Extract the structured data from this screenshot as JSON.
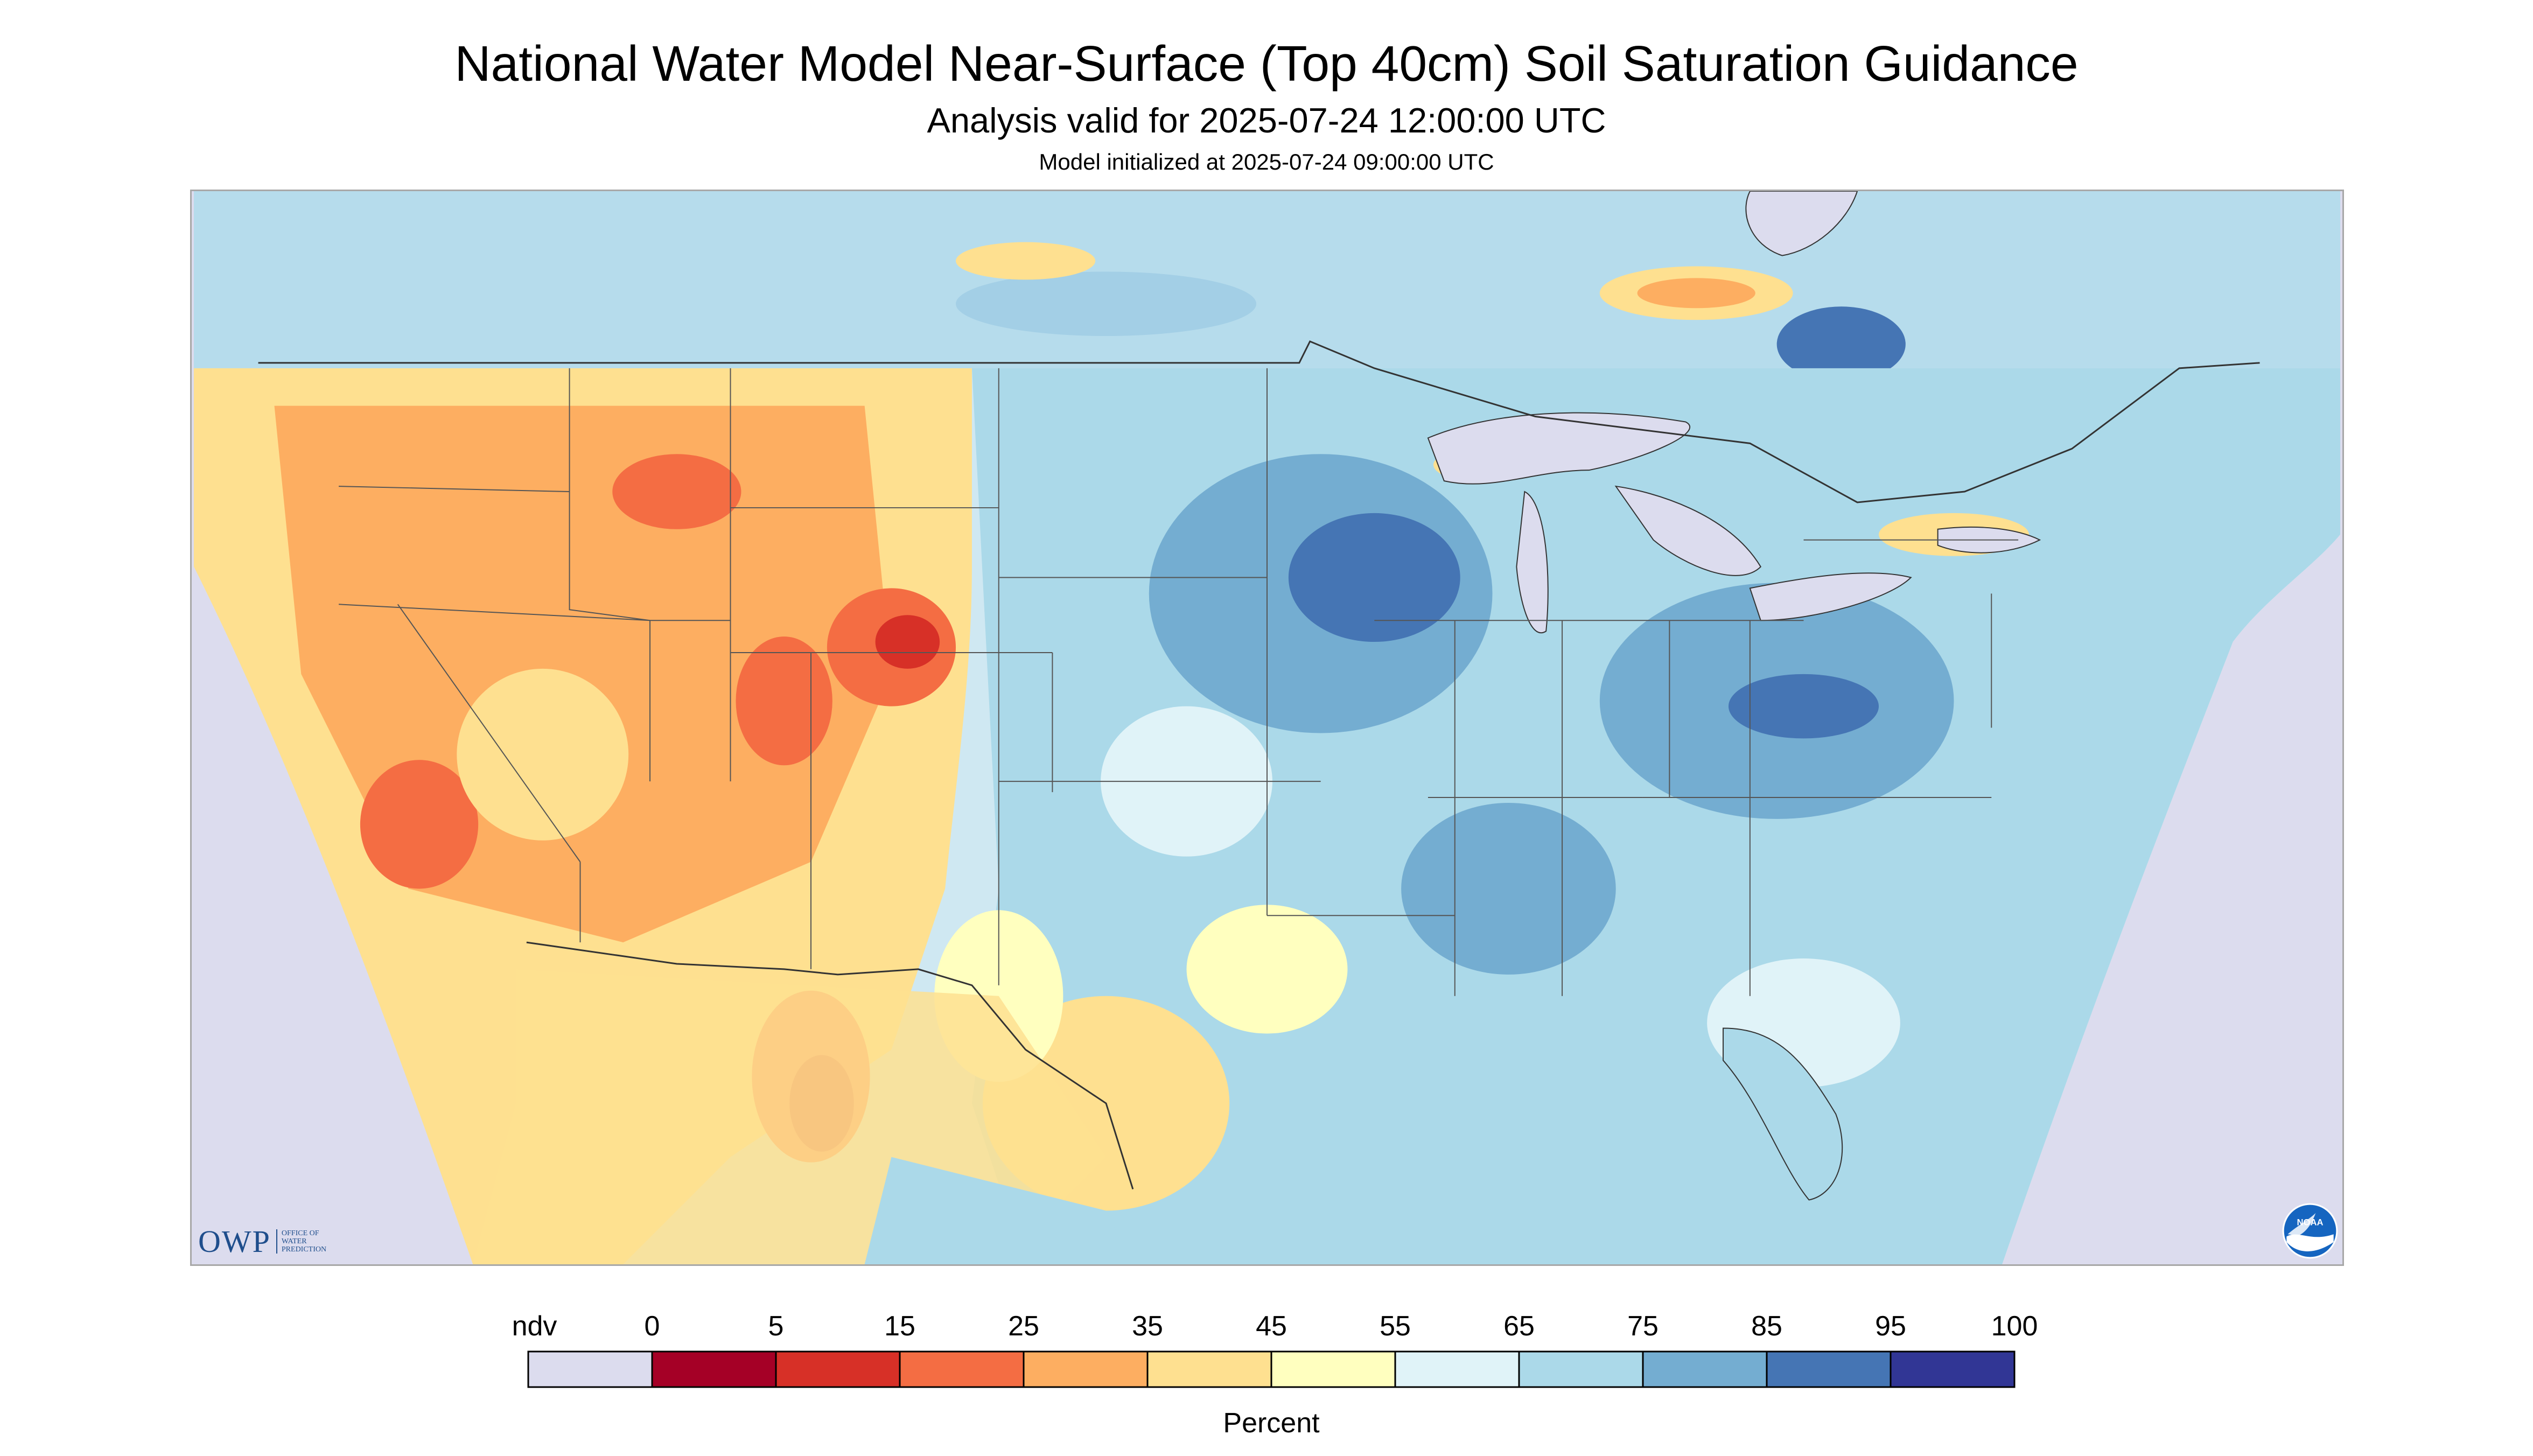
{
  "title": "National Water Model Near-Surface (Top 40cm) Soil Saturation Guidance",
  "subtitle": "Analysis valid for 2025-07-24 12:00:00 UTC",
  "init_line": "Model initialized at 2025-07-24 09:00:00 UTC",
  "logos": {
    "owp": {
      "text": "OWP",
      "subtext": [
        "OFFICE OF",
        "WATER",
        "PREDICTION"
      ]
    },
    "noaa": {
      "text": "NOAA"
    }
  },
  "legend": {
    "label": "Percent",
    "tick_labels": [
      "ndv",
      "0",
      "5",
      "15",
      "25",
      "35",
      "45",
      "55",
      "65",
      "75",
      "85",
      "95",
      "100"
    ],
    "colors": [
      "#dcdcee",
      "#a50026",
      "#d73027",
      "#f46d43",
      "#fdae61",
      "#fee090",
      "#ffffbf",
      "#e0f3f8",
      "#abd9e9",
      "#74add1",
      "#4575b4",
      "#313695"
    ]
  },
  "colors": {
    "no_data": "#dcdcee",
    "state_border": "#555555",
    "frame": "#a8a8a8"
  }
}
